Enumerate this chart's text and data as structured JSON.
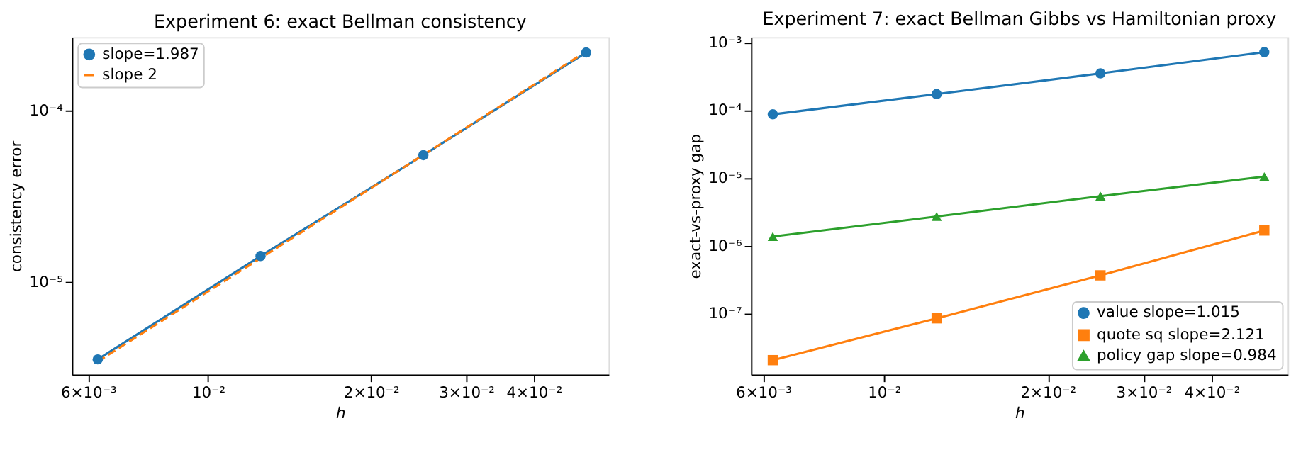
{
  "chart_data": [
    {
      "type": "line",
      "title": "Experiment 6: exact Bellman consistency",
      "xlabel": "h",
      "ylabel": "consistency error",
      "log": "xy",
      "legend": "top left",
      "grid": false,
      "xlim": [
        0.0056,
        0.055
      ],
      "ylim": [
        2.9e-06,
        0.000268
      ],
      "xticks": [
        {
          "value": 0.006,
          "label": "6×10⁻³"
        },
        {
          "value": 0.01,
          "label": "10⁻²"
        },
        {
          "value": 0.02,
          "label": "2×10⁻²"
        },
        {
          "value": 0.03,
          "label": "3×10⁻²"
        },
        {
          "value": 0.04,
          "label": "4×10⁻²"
        }
      ],
      "yticks": [
        {
          "value": 1e-05,
          "label": "10⁻⁵"
        },
        {
          "value": 0.0001,
          "label": "10⁻⁴"
        }
      ],
      "x": [
        0.00625,
        0.0125,
        0.025,
        0.05
      ],
      "series": [
        {
          "name": "slope=1.987",
          "color": "#1f77b4",
          "marker": "circle",
          "line_style": "solid",
          "values": [
            3.55e-06,
            1.42e-05,
            5.5e-05,
            0.000218
          ]
        },
        {
          "name": "slope 2",
          "color": "#ff7f0e",
          "marker": "none",
          "line_style": "dashed",
          "values": [
            3.45e-06,
            1.38e-05,
            5.52e-05,
            0.000221
          ]
        }
      ]
    },
    {
      "type": "line",
      "title": "Experiment 7: exact Bellman Gibbs vs Hamiltonian proxy",
      "xlabel": "h",
      "ylabel": "exact-vs-proxy gap",
      "log": "xy",
      "legend": "bottom right",
      "grid": false,
      "xlim": [
        0.0057,
        0.0552
      ],
      "ylim": [
        1.26e-08,
        0.0012
      ],
      "xticks": [
        {
          "value": 0.006,
          "label": "6×10⁻³"
        },
        {
          "value": 0.01,
          "label": "10⁻²"
        },
        {
          "value": 0.02,
          "label": "2×10⁻²"
        },
        {
          "value": 0.03,
          "label": "3×10⁻²"
        },
        {
          "value": 0.04,
          "label": "4×10⁻²"
        }
      ],
      "yticks": [
        {
          "value": 1e-07,
          "label": "10⁻⁷"
        },
        {
          "value": 1e-06,
          "label": "10⁻⁶"
        },
        {
          "value": 1e-05,
          "label": "10⁻⁵"
        },
        {
          "value": 0.0001,
          "label": "10⁻⁴"
        },
        {
          "value": 0.001,
          "label": "10⁻³"
        }
      ],
      "x": [
        0.00625,
        0.0125,
        0.025,
        0.05
      ],
      "series": [
        {
          "name": "value slope=1.015",
          "color": "#1f77b4",
          "marker": "circle",
          "line_style": "solid",
          "values": [
            8.7e-05,
            0.000173,
            0.00035,
            0.00072
          ]
        },
        {
          "name": "quote sq slope=2.121",
          "color": "#ff7f0e",
          "marker": "square",
          "line_style": "solid",
          "values": [
            2.05e-08,
            8.5e-08,
            3.66e-07,
            1.68e-06
          ]
        },
        {
          "name": "policy gap slope=0.984",
          "color": "#2ca02c",
          "marker": "triangle",
          "line_style": "solid",
          "values": [
            1.37e-06,
            2.7e-06,
            5.4e-06,
            1.05e-05
          ]
        }
      ]
    }
  ]
}
